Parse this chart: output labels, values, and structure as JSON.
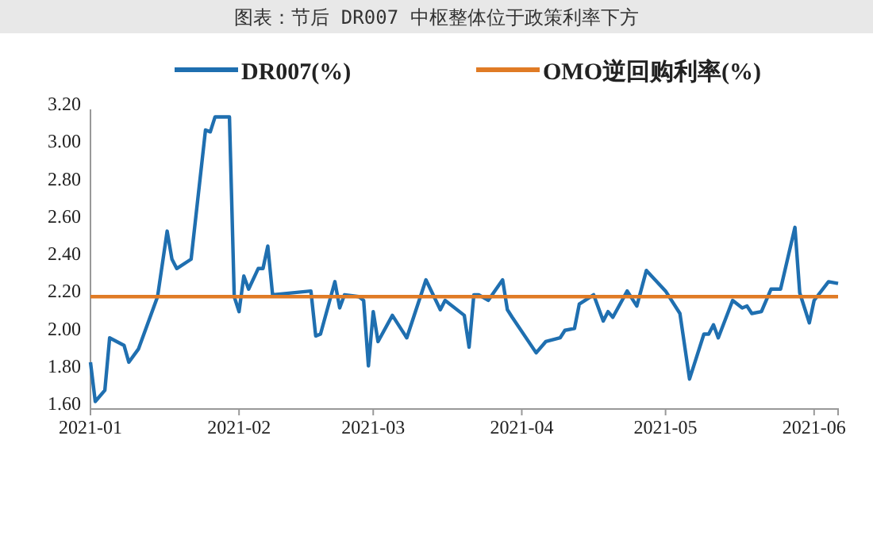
{
  "chart_data": {
    "type": "line",
    "title": "图表：节后 DR007 中枢整体位于政策利率下方",
    "xlim": [
      "2021-01-01",
      "2021-06-06"
    ],
    "xticks": [
      {
        "value": "2021-01-01",
        "label": "2021-01"
      },
      {
        "value": "2021-02-01",
        "label": "2021-02"
      },
      {
        "value": "2021-03-01",
        "label": "2021-03"
      },
      {
        "value": "2021-04-01",
        "label": "2021-04"
      },
      {
        "value": "2021-05-01",
        "label": "2021-05"
      },
      {
        "value": "2021-06-01",
        "label": "2021-06"
      }
    ],
    "ylim": [
      1.6,
      3.2
    ],
    "yticks": [
      {
        "value": 1.6,
        "label": "1.60"
      },
      {
        "value": 1.8,
        "label": "1.80"
      },
      {
        "value": 2.0,
        "label": "2.00"
      },
      {
        "value": 2.2,
        "label": "2.20"
      },
      {
        "value": 2.4,
        "label": "2.40"
      },
      {
        "value": 2.6,
        "label": "2.60"
      },
      {
        "value": 2.8,
        "label": "2.80"
      },
      {
        "value": 3.0,
        "label": "3.00"
      },
      {
        "value": 3.2,
        "label": "3.20"
      }
    ],
    "grid": false,
    "legend": "top",
    "marker": "none",
    "line_style": "solid",
    "series": [
      {
        "name": "DR007(%)",
        "color": "#1f6fb0",
        "x": [
          "2021-01-01",
          "2021-01-02",
          "2021-01-04",
          "2021-01-05",
          "2021-01-08",
          "2021-01-09",
          "2021-01-11",
          "2021-01-15",
          "2021-01-17",
          "2021-01-18",
          "2021-01-19",
          "2021-01-22",
          "2021-01-25",
          "2021-01-26",
          "2021-01-27",
          "2021-01-30",
          "2021-01-31",
          "2021-02-01",
          "2021-02-02",
          "2021-02-03",
          "2021-02-05",
          "2021-02-06",
          "2021-02-07",
          "2021-02-08",
          "2021-02-16",
          "2021-02-17",
          "2021-02-18",
          "2021-02-21",
          "2021-02-22",
          "2021-02-23",
          "2021-02-26",
          "2021-02-27",
          "2021-02-28",
          "2021-03-01",
          "2021-03-02",
          "2021-03-05",
          "2021-03-08",
          "2021-03-12",
          "2021-03-15",
          "2021-03-16",
          "2021-03-20",
          "2021-03-21",
          "2021-03-22",
          "2021-03-23",
          "2021-03-25",
          "2021-03-28",
          "2021-03-29",
          "2021-03-30",
          "2021-04-04",
          "2021-04-06",
          "2021-04-09",
          "2021-04-10",
          "2021-04-12",
          "2021-04-13",
          "2021-04-16",
          "2021-04-18",
          "2021-04-19",
          "2021-04-20",
          "2021-04-23",
          "2021-04-25",
          "2021-04-27",
          "2021-05-01",
          "2021-05-04",
          "2021-05-06",
          "2021-05-07",
          "2021-05-09",
          "2021-05-10",
          "2021-05-11",
          "2021-05-12",
          "2021-05-15",
          "2021-05-17",
          "2021-05-18",
          "2021-05-19",
          "2021-05-21",
          "2021-05-23",
          "2021-05-25",
          "2021-05-28",
          "2021-05-29",
          "2021-05-31",
          "2021-06-01",
          "2021-06-04",
          "2021-06-06"
        ],
        "values": [
          1.85,
          1.64,
          1.7,
          1.98,
          1.94,
          1.85,
          1.92,
          2.2,
          2.55,
          2.4,
          2.35,
          2.4,
          3.09,
          3.08,
          3.16,
          3.16,
          2.2,
          2.12,
          2.31,
          2.24,
          2.35,
          2.35,
          2.47,
          2.21,
          2.23,
          1.99,
          2.0,
          2.28,
          2.14,
          2.21,
          2.2,
          2.18,
          1.83,
          2.12,
          1.96,
          2.1,
          1.98,
          2.29,
          2.13,
          2.18,
          2.1,
          1.93,
          2.21,
          2.21,
          2.18,
          2.29,
          2.13,
          2.09,
          1.9,
          1.96,
          1.98,
          2.02,
          2.03,
          2.16,
          2.21,
          2.07,
          2.12,
          2.09,
          2.23,
          2.15,
          2.34,
          2.23,
          2.11,
          1.76,
          1.84,
          2.0,
          2.0,
          2.05,
          1.98,
          2.18,
          2.14,
          2.15,
          2.11,
          2.12,
          2.24,
          2.24,
          2.57,
          2.22,
          2.06,
          2.18,
          2.28,
          2.27
        ]
      },
      {
        "name": "OMO逆回购利率(%)",
        "color": "#e07b25",
        "x": [
          "2021-01-01",
          "2021-06-06"
        ],
        "values": [
          2.2,
          2.2
        ]
      }
    ]
  }
}
